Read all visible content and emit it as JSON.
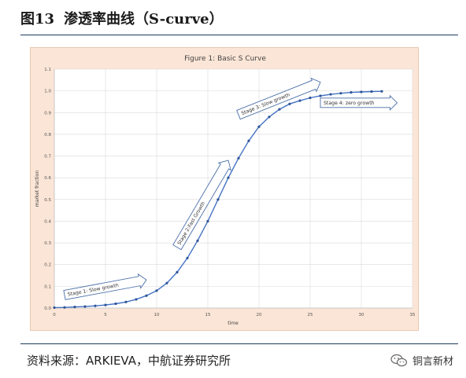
{
  "figure": {
    "number": "图13",
    "title": "渗透率曲线（S-curve）"
  },
  "source": "资料来源：ARKIEVA，中航证券研究所",
  "brand": {
    "name": "铜言新材",
    "icon": "wechat-icon"
  },
  "colors": {
    "panel_bg": "#fbe5d6",
    "plot_bg": "#ffffff",
    "line": "#4472c4",
    "marker": "#2f5597",
    "arrow_stroke": "#4a6fa8"
  },
  "chart_data": {
    "type": "line",
    "title": "Figure 1: Basic S Curve",
    "xlabel": "time",
    "ylabel": "market fraction",
    "xlim": [
      0,
      35
    ],
    "ylim": [
      0,
      1.1
    ],
    "xticks": [
      0,
      5,
      10,
      15,
      20,
      25,
      30,
      35
    ],
    "yticks": [
      0,
      0.1,
      0.2,
      0.3,
      0.4,
      0.5,
      0.6,
      0.7,
      0.8,
      0.9,
      1.0,
      1.1
    ],
    "grid": true,
    "series": [
      {
        "x": [
          0,
          1,
          2,
          3,
          4,
          5,
          6,
          7,
          8,
          9,
          10,
          11,
          12,
          13,
          14,
          15,
          16,
          17,
          18,
          19,
          20,
          21,
          22,
          23,
          24,
          25,
          26,
          27,
          28,
          29,
          30,
          31,
          32
        ],
        "y": [
          0.002,
          0.003,
          0.005,
          0.007,
          0.01,
          0.014,
          0.02,
          0.028,
          0.04,
          0.057,
          0.08,
          0.115,
          0.165,
          0.23,
          0.31,
          0.4,
          0.5,
          0.6,
          0.69,
          0.77,
          0.835,
          0.88,
          0.915,
          0.94,
          0.955,
          0.968,
          0.977,
          0.984,
          0.989,
          0.993,
          0.995,
          0.997,
          0.998
        ]
      }
    ],
    "annotations": [
      {
        "text": "Stage 1: Slow growth",
        "from": [
          1,
          0.06
        ],
        "to": [
          9,
          0.13
        ]
      },
      {
        "text": "Stage 2:Fast Growth",
        "from": [
          12,
          0.28
        ],
        "to": [
          17,
          0.68
        ]
      },
      {
        "text": "Stage 3: Slow growth",
        "from": [
          18,
          0.89
        ],
        "to": [
          26,
          1.04
        ]
      },
      {
        "text": "Stage 4: zero growth",
        "from": [
          26,
          0.945
        ],
        "to": [
          33.5,
          0.945
        ]
      }
    ]
  }
}
